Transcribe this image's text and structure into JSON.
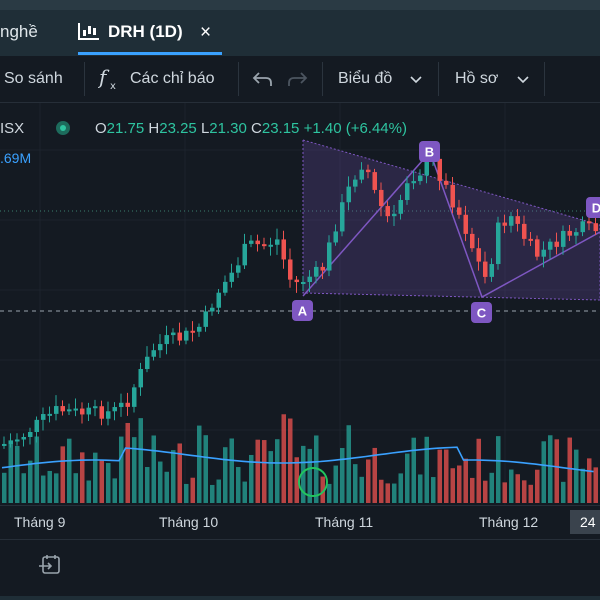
{
  "tabs": {
    "previous": "nghề",
    "active": "DRH (1D)",
    "close": "×"
  },
  "toolbar": {
    "compare": "So sánh",
    "indicators": "Các chỉ báo",
    "chart_type": "Biểu đồ",
    "profile": "Hồ sơ"
  },
  "legend": {
    "exchange": "ISX",
    "o_label": "O",
    "o_value": "21.75",
    "h_label": "H",
    "h_value": "23.25",
    "l_label": "L",
    "l_value": "21.30",
    "c_label": "C",
    "c_value": "23.15",
    "change": "+1.40 (+6.44%)",
    "volume": ".69M"
  },
  "pattern_labels": [
    "A",
    "B",
    "C",
    "D"
  ],
  "x_axis": {
    "labels": [
      "Tháng 9",
      "Tháng 10",
      "Tháng 11",
      "Tháng 12"
    ],
    "current": "24"
  },
  "colors": {
    "up": "#26a69a",
    "down": "#ef5350",
    "pattern": "#7e57c2",
    "volume_ma": "#3aa1ff",
    "highlight": "#22c55e"
  },
  "icons": {
    "chart_tab": "candlestick-chart-icon",
    "indicators": "function-icon",
    "undo": "undo-arrow-icon",
    "redo": "redo-arrow-icon",
    "dropdown": "chevron-down-icon",
    "goto": "goto-date-icon"
  },
  "chart_data": {
    "type": "candlestick",
    "x": [
      "Tháng 9",
      "Tháng 10",
      "Tháng 11",
      "Tháng 12",
      "24"
    ],
    "last_bar": {
      "open": 21.75,
      "high": 23.25,
      "low": 21.3,
      "close": 23.15,
      "change": 1.4,
      "change_pct": 6.44
    },
    "volume_label": ".69M",
    "pattern_points": [
      "A",
      "B",
      "C",
      "D"
    ]
  }
}
